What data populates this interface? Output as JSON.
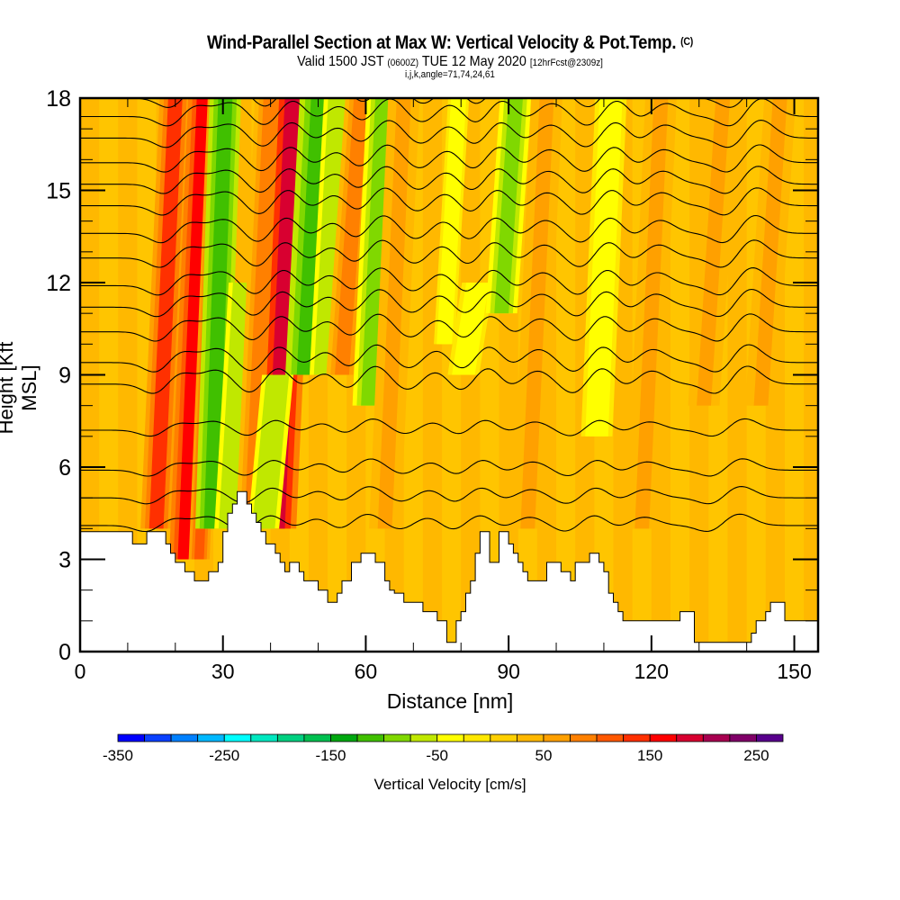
{
  "header": {
    "title": "Wind-Parallel Section at Max W: Vertical Velocity & Pot.Temp.",
    "title_mark": "(C)",
    "valid_prefix": "Valid 1500 JST",
    "valid_utc": "(0600Z)",
    "valid_date": "TUE 12 May 2020",
    "forecast": "[12hrFcst@2309z]",
    "indices": "i,j,k,angle=71,74,24,61"
  },
  "chart_data": {
    "type": "heatmap",
    "title": "Wind-Parallel Section at Max W: Vertical Velocity & Pot.Temp.",
    "xlabel": "Distance [nm]",
    "ylabel": "Height [Kft MSL]",
    "xlim": [
      0,
      155
    ],
    "ylim": [
      0,
      18
    ],
    "xticks": [
      0,
      30,
      60,
      90,
      120,
      150
    ],
    "xtick_labels": [
      "0",
      "30",
      "60",
      "90",
      "120",
      "150"
    ],
    "yticks": [
      0,
      3,
      6,
      9,
      12,
      15,
      18
    ],
    "ytick_labels": [
      "0",
      "3",
      "6",
      "9",
      "12",
      "15",
      "18"
    ],
    "x_minor_step": 10,
    "y_minor_step": 1,
    "colorbar": {
      "label": "Vertical Velocity [cm/s]",
      "tick_values": [
        -350,
        -250,
        -150,
        -50,
        50,
        150,
        250
      ],
      "tick_labels": [
        "-350",
        "-250",
        "-150",
        "-50",
        "50",
        "150",
        "250"
      ],
      "levels": [
        -350,
        -325,
        -300,
        -275,
        -250,
        -225,
        -200,
        -175,
        -150,
        -125,
        -100,
        -75,
        -50,
        -25,
        0,
        25,
        50,
        75,
        100,
        125,
        150,
        175,
        200,
        225,
        250,
        275
      ],
      "colors": [
        "#0000ff",
        "#0a40ff",
        "#0080ff",
        "#00b8ff",
        "#00ffff",
        "#00e8c0",
        "#00d080",
        "#00c050",
        "#00a810",
        "#40c000",
        "#80d800",
        "#c0e800",
        "#ffff00",
        "#ffe800",
        "#ffd000",
        "#ffb800",
        "#ffa000",
        "#ff8000",
        "#ff5800",
        "#ff3000",
        "#ff0000",
        "#d80030",
        "#a80050",
        "#800068",
        "#58008c"
      ]
    },
    "terrain_kft": {
      "x": [
        0,
        10,
        11,
        12,
        14,
        17,
        18,
        19,
        20,
        22,
        23,
        24,
        26,
        27,
        29,
        30,
        31,
        32,
        33,
        34,
        35,
        36,
        37,
        38,
        39,
        40,
        41,
        42,
        43,
        44,
        45,
        46,
        47,
        49,
        50,
        51,
        52,
        53,
        54,
        55,
        57,
        58,
        59,
        60,
        62,
        64,
        65,
        66,
        68,
        70,
        72,
        73,
        75,
        76,
        77,
        78,
        79,
        80,
        81,
        82,
        83,
        84,
        85,
        86,
        87,
        88,
        89,
        90,
        91,
        92,
        93,
        94,
        96,
        98,
        100,
        101,
        103,
        104,
        106,
        107,
        108,
        109,
        110,
        111,
        112,
        113,
        114,
        115,
        117,
        120,
        123,
        124,
        126,
        127,
        128,
        129,
        131,
        134,
        137,
        139,
        140,
        141,
        142,
        144,
        145,
        146,
        148,
        150,
        155
      ],
      "terrain_top": [
        3.9,
        3.9,
        3.5,
        3.5,
        3.9,
        3.9,
        3.5,
        3.2,
        2.9,
        2.6,
        2.6,
        2.3,
        2.3,
        2.6,
        2.9,
        3.9,
        4.5,
        4.8,
        5.2,
        5.2,
        4.8,
        4.5,
        4.2,
        3.9,
        3.5,
        3.5,
        3.2,
        2.9,
        2.6,
        2.9,
        2.9,
        2.6,
        2.3,
        2.3,
        2.0,
        2.0,
        1.6,
        1.6,
        1.9,
        2.3,
        2.9,
        2.9,
        3.2,
        3.2,
        2.9,
        2.3,
        2.0,
        1.9,
        1.6,
        1.6,
        1.3,
        1.3,
        1.0,
        1.0,
        0.3,
        0.3,
        1.0,
        1.3,
        1.9,
        2.3,
        3.2,
        3.9,
        3.9,
        2.9,
        2.9,
        3.9,
        3.9,
        3.5,
        3.2,
        2.9,
        2.6,
        2.3,
        2.3,
        2.9,
        2.9,
        2.6,
        2.3,
        2.9,
        2.9,
        3.2,
        3.2,
        2.9,
        2.6,
        1.9,
        1.6,
        1.3,
        1.0,
        1.0,
        1.0,
        1.0,
        1.0,
        1.0,
        1.3,
        1.3,
        1.3,
        0.3,
        0.3,
        0.3,
        0.3,
        0.3,
        0.3,
        0.6,
        1.0,
        1.3,
        1.6,
        1.6,
        1.0,
        1.0,
        1.0
      ]
    },
    "vertical_velocity_bands": [
      {
        "x_center": 18,
        "width": 3,
        "value": 125,
        "z_range": [
          4,
          18
        ]
      },
      {
        "x_center": 24,
        "width": 3,
        "value": 150,
        "z_range": [
          3,
          18
        ]
      },
      {
        "x_center": 27,
        "width": 2,
        "value": 100,
        "z_range": [
          3,
          18
        ]
      },
      {
        "x_center": 29,
        "width": 3,
        "value": -125,
        "z_range": [
          4,
          18
        ]
      },
      {
        "x_center": 33,
        "width": 3,
        "value": -75,
        "z_range": [
          4,
          12
        ]
      },
      {
        "x_center": 38,
        "width": 3,
        "value": 75,
        "z_range": [
          4,
          18
        ]
      },
      {
        "x_center": 43,
        "width": 4,
        "value": 175,
        "z_range": [
          4,
          18
        ]
      },
      {
        "x_center": 40,
        "width": 3,
        "value": -75,
        "z_range": [
          4,
          9
        ]
      },
      {
        "x_center": 49,
        "width": 4,
        "value": -125,
        "z_range": [
          9,
          18
        ]
      },
      {
        "x_center": 53,
        "width": 3,
        "value": -75,
        "z_range": [
          9,
          18
        ]
      },
      {
        "x_center": 57,
        "width": 3,
        "value": 75,
        "z_range": [
          9,
          18
        ]
      },
      {
        "x_center": 62,
        "width": 3,
        "value": -100,
        "z_range": [
          8,
          18
        ]
      },
      {
        "x_center": 66,
        "width": 3,
        "value": 50,
        "z_range": [
          4,
          18
        ]
      },
      {
        "x_center": 78,
        "width": 2,
        "value": -50,
        "z_range": [
          10,
          18
        ]
      },
      {
        "x_center": 82,
        "width": 3,
        "value": -50,
        "z_range": [
          9,
          12
        ]
      },
      {
        "x_center": 90,
        "width": 3,
        "value": -100,
        "z_range": [
          11,
          18
        ]
      },
      {
        "x_center": 96,
        "width": 3,
        "value": 50,
        "z_range": [
          4,
          18
        ]
      },
      {
        "x_center": 110,
        "width": 3,
        "value": -50,
        "z_range": [
          7,
          18
        ]
      },
      {
        "x_center": 120,
        "width": 3,
        "value": 50,
        "z_range": [
          4,
          18
        ]
      },
      {
        "x_center": 133,
        "width": 3,
        "value": 50,
        "z_range": [
          8,
          18
        ]
      },
      {
        "x_center": 145,
        "width": 3,
        "value": 50,
        "z_range": [
          8,
          18
        ]
      }
    ],
    "background_value": 25,
    "theta_contours": {
      "label": "Potential Temperature",
      "base_heights_kft": [
        4.1,
        5.0,
        5.9,
        7.2,
        8.7,
        9.4,
        10.4,
        11.2,
        11.9,
        12.8,
        13.6,
        14.5,
        15.2,
        15.9,
        16.7,
        17.4,
        18.0
      ],
      "wave_crests_x": [
        22,
        29,
        42,
        52,
        62,
        75,
        86,
        96,
        110,
        120,
        140
      ]
    }
  }
}
